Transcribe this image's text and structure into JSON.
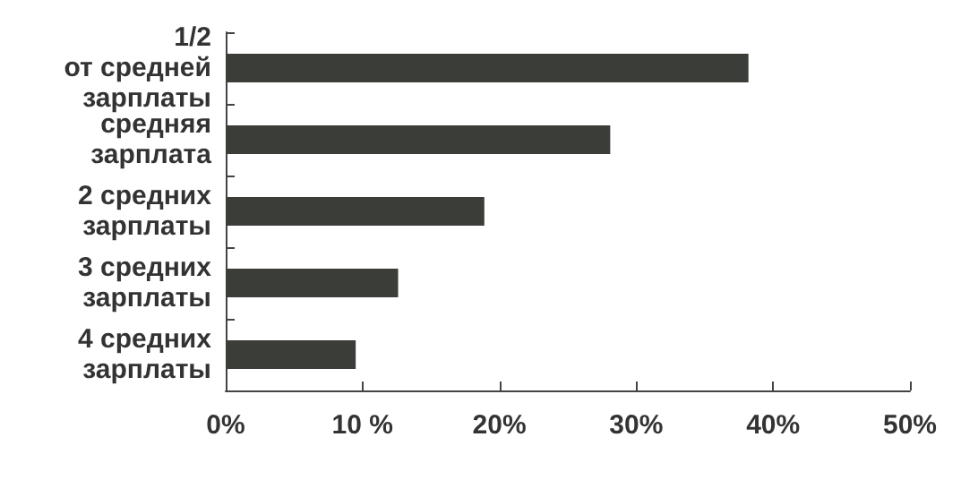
{
  "chart_data": {
    "type": "bar",
    "orientation": "horizontal",
    "categories": [
      "1/2\nот средней\nзарплаты",
      "средняя\nзарплата",
      "2 средних\nзарплаты",
      "3 средних\nзарплаты",
      "4 средних\nзарплаты"
    ],
    "values": [
      38.2,
      28.1,
      18.9,
      12.6,
      9.5
    ],
    "color": "#3b3d39",
    "xlim": [
      0,
      50
    ],
    "xticks": [
      {
        "value": 0,
        "label": "0%"
      },
      {
        "value": 10,
        "label": "10 %"
      },
      {
        "value": 20,
        "label": "20%"
      },
      {
        "value": 30,
        "label": "30%"
      },
      {
        "value": 40,
        "label": "40%"
      },
      {
        "value": 50,
        "label": "50%"
      }
    ],
    "grid": false
  }
}
